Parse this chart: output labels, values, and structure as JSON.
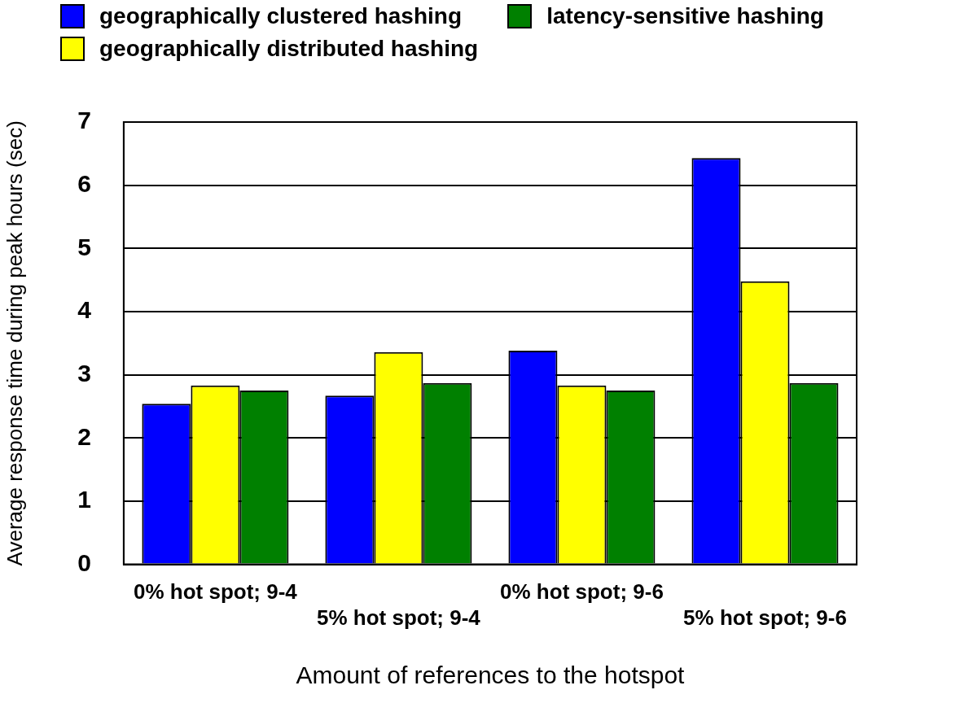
{
  "chart_data": {
    "type": "bar",
    "xlabel": "Amount of references to the hotspot",
    "ylabel": "Average response time during peak hours (sec)",
    "categories": [
      "0% hot spot; 9-4",
      "5% hot spot; 9-4",
      "0% hot spot; 9-6",
      "5% hot spot; 9-6"
    ],
    "series": [
      {
        "name": "geographically clustered hashing",
        "color": "#0000ff",
        "values": [
          2.54,
          2.67,
          3.38,
          6.43
        ]
      },
      {
        "name": "geographically distributed hashing",
        "color": "#ffff00",
        "values": [
          2.83,
          3.36,
          2.83,
          4.48
        ]
      },
      {
        "name": "latency-sensitive hashing",
        "color": "#008000",
        "values": [
          2.75,
          2.87,
          2.75,
          2.87
        ]
      }
    ],
    "ylim": [
      0,
      7
    ],
    "yticks": [
      0,
      1,
      2,
      3,
      4,
      5,
      6,
      7
    ],
    "grid": "y",
    "legend": "top left"
  }
}
